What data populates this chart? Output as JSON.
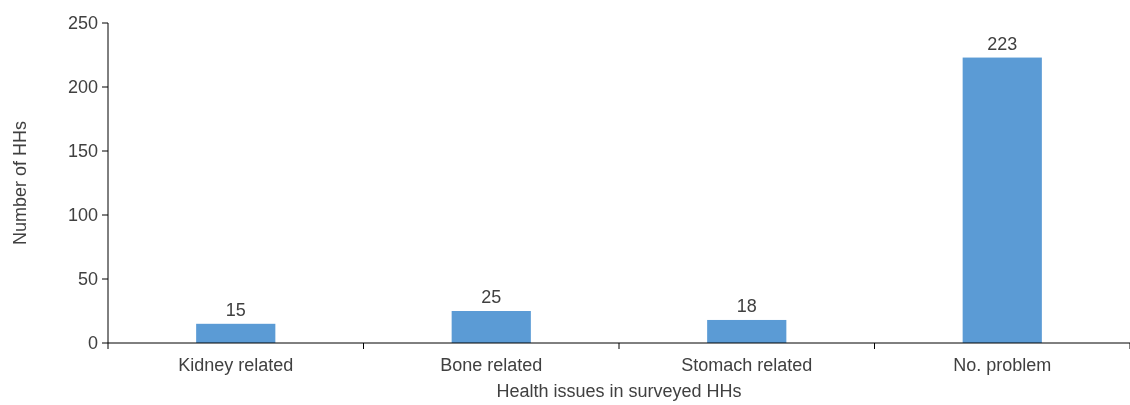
{
  "chart_data": {
    "type": "bar",
    "xlabel": "Health issues in surveyed HHs",
    "ylabel": "Number of HHs",
    "categories": [
      "Kidney related",
      "Bone related",
      "Stomach related",
      "No. problem"
    ],
    "values": [
      15,
      25,
      18,
      223
    ],
    "color": "#5b9bd5",
    "ylim": [
      0,
      250
    ],
    "yticks": [
      0,
      50,
      100,
      150,
      200,
      250
    ],
    "data_labels": true,
    "grid": false
  }
}
